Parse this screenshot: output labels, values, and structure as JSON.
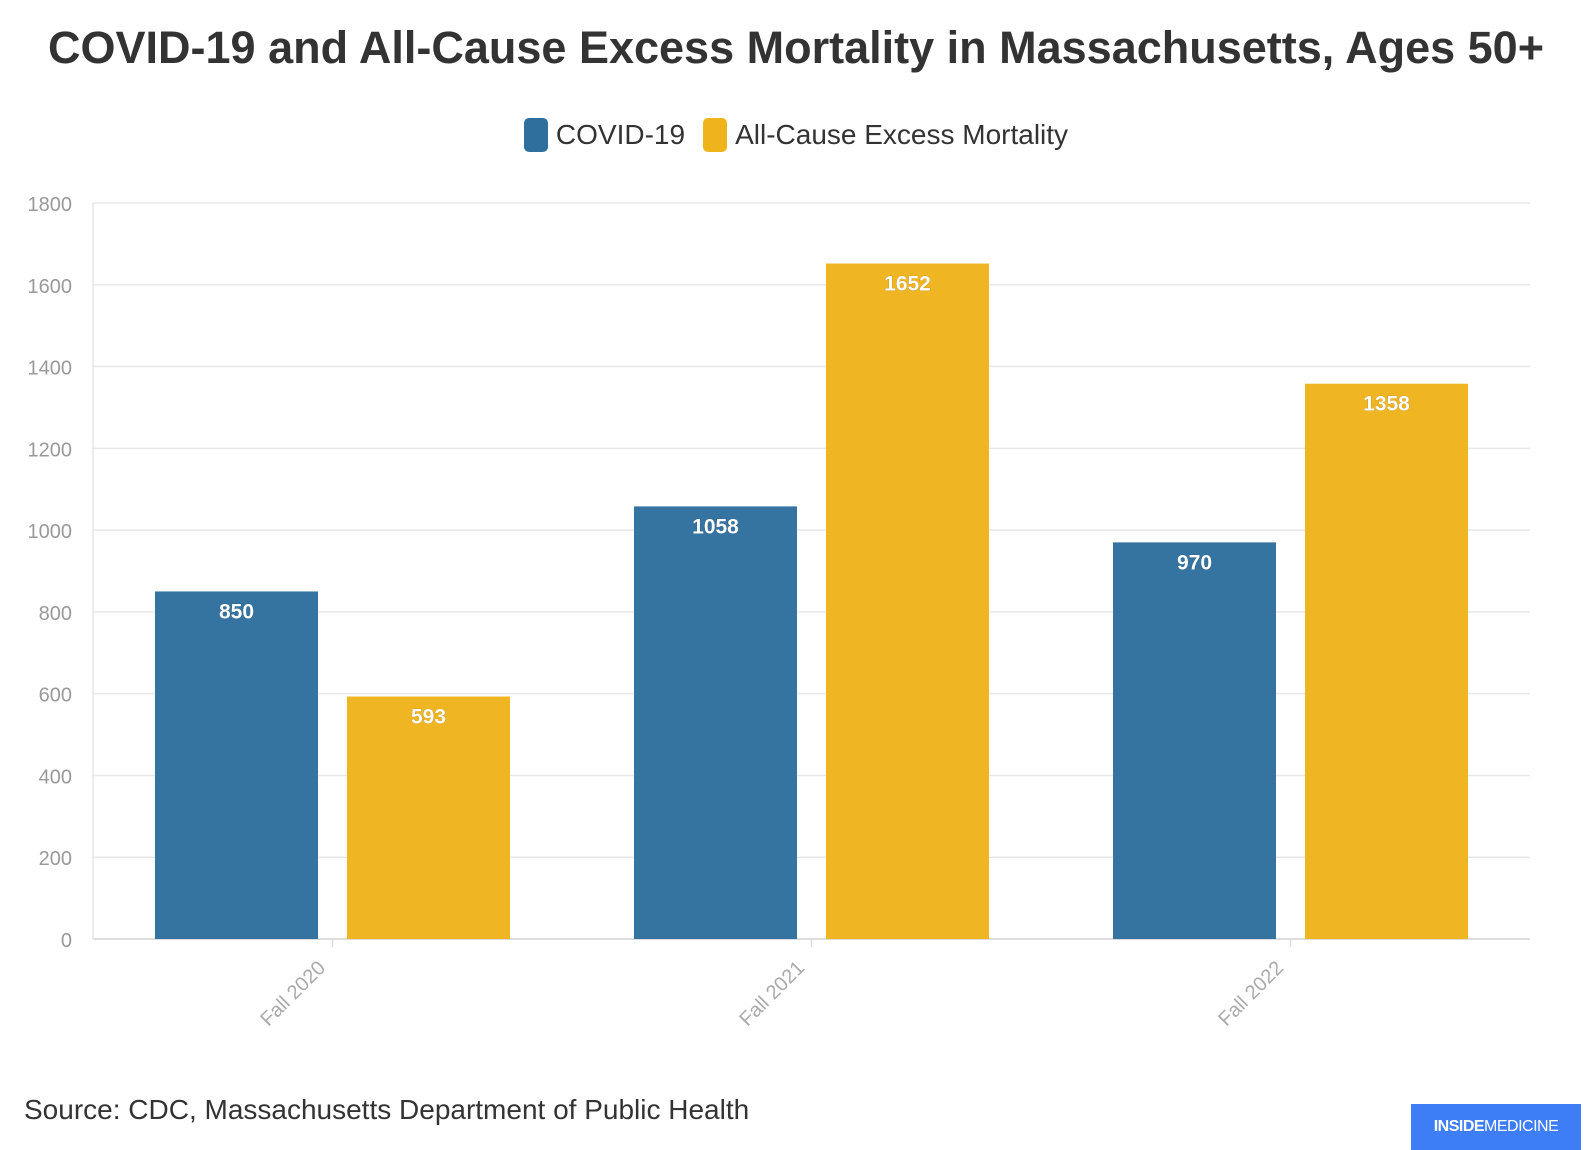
{
  "title": "COVID-19 and All-Cause Excess Mortality in Massachusetts, Ages 50+",
  "legend": [
    {
      "label": "COVID-19",
      "color": "#2e6f9e"
    },
    {
      "label": "All-Cause Excess Mortality",
      "color": "#efb31b"
    }
  ],
  "source": "Source: CDC, Massachusetts Department of Public Health",
  "logo": {
    "part1": "INSIDE",
    "part2": "MEDICINE",
    "color": "#3d7ef7"
  },
  "chart_data": {
    "type": "bar",
    "categories": [
      "Fall 2020",
      "Fall 2021",
      "Fall 2022"
    ],
    "series": [
      {
        "name": "COVID-19",
        "values": [
          850,
          1058,
          970
        ],
        "color": "#2e6f9e"
      },
      {
        "name": "All-Cause Excess Mortality",
        "values": [
          593,
          1652,
          1358
        ],
        "color": "#efb31b"
      }
    ],
    "ylim": [
      0,
      1800
    ],
    "yticks": [
      0,
      200,
      400,
      600,
      800,
      1000,
      1200,
      1400,
      1600,
      1800
    ],
    "xlabel": "",
    "ylabel": "",
    "grid": true,
    "legend_position": "top-center",
    "data_labels": true
  }
}
